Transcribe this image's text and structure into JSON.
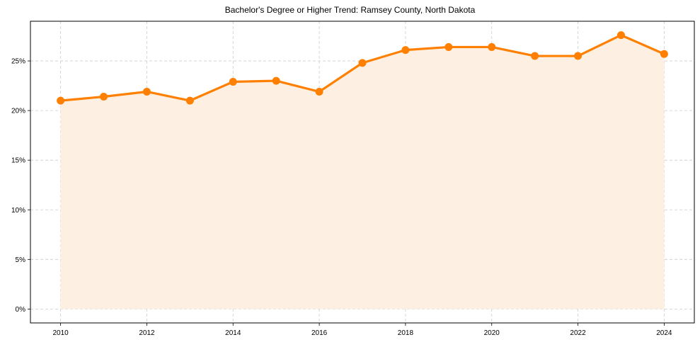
{
  "chart_data": {
    "type": "area",
    "title": "Bachelor's Degree or Higher Trend: Ramsey County, North Dakota",
    "xlabel": "",
    "ylabel": "",
    "x": [
      2010,
      2011,
      2012,
      2013,
      2014,
      2015,
      2016,
      2017,
      2018,
      2019,
      2020,
      2021,
      2022,
      2023,
      2024
    ],
    "series": [
      {
        "name": "Bachelor's Degree or Higher",
        "values": [
          21.0,
          21.4,
          21.9,
          21.0,
          22.9,
          23.0,
          21.9,
          24.8,
          26.1,
          26.4,
          26.4,
          25.5,
          25.5,
          27.6,
          25.7
        ],
        "unit": "%",
        "line_color": "#ff8000",
        "fill_color": "#fdf0e3",
        "marker": "circle"
      }
    ],
    "xticks": [
      "2010",
      "2012",
      "2014",
      "2016",
      "2018",
      "2020",
      "2022",
      "2024"
    ],
    "yticks": [
      "0%",
      "5%",
      "10%",
      "15%",
      "20%",
      "25%"
    ],
    "xlim": [
      2009.3,
      2024.7
    ],
    "ylim": [
      -1.4,
      29.0
    ],
    "grid": true,
    "grid_style": "dashed",
    "legend": null
  }
}
